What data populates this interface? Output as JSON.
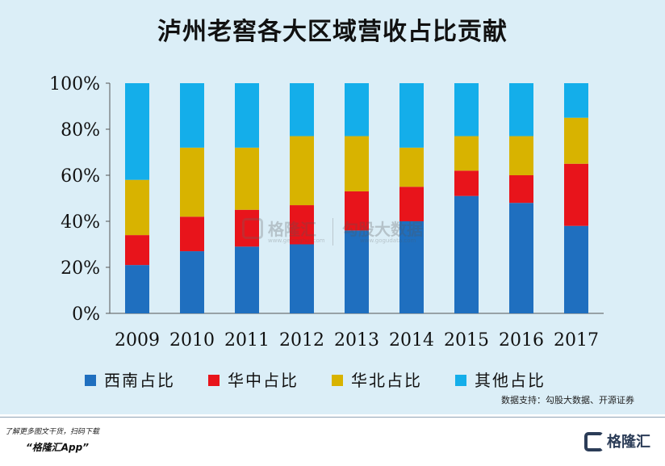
{
  "title": "泸州老窖各大区域营收占比贡献",
  "source": "数据支持：勾股大数据、开源证券",
  "watermark": {
    "brand1": "格隆汇",
    "brand1_url": "www.gelonghui.com",
    "brand2": "勾股大数据",
    "brand2_url": "www.gogudata.com"
  },
  "footer": {
    "note": "了解更多图文干货，扫码下载",
    "app": "“格隆汇App”",
    "brand": "格隆汇"
  },
  "colors": {
    "background": "#dbeef7",
    "series": [
      "#1f6fbf",
      "#e8141b",
      "#d8b300",
      "#14aeea"
    ]
  },
  "chart_data": {
    "type": "bar",
    "stacked": true,
    "title": "泸州老窖各大区域营收占比贡献",
    "categories": [
      "2009",
      "2010",
      "2011",
      "2012",
      "2013",
      "2014",
      "2015",
      "2016",
      "2017"
    ],
    "ylim": [
      0,
      100
    ],
    "yticks": [
      "0%",
      "20%",
      "40%",
      "60%",
      "80%",
      "100%"
    ],
    "legend_position": "bottom",
    "series": [
      {
        "name": "西南占比",
        "values": [
          21,
          27,
          29,
          30,
          36,
          40,
          51,
          48,
          38
        ]
      },
      {
        "name": "华中占比",
        "values": [
          13,
          15,
          16,
          17,
          17,
          15,
          11,
          12,
          27
        ]
      },
      {
        "name": "华北占比",
        "values": [
          24,
          30,
          27,
          30,
          24,
          17,
          15,
          17,
          20
        ]
      },
      {
        "name": "其他占比",
        "values": [
          42,
          28,
          28,
          23,
          23,
          28,
          23,
          23,
          15
        ]
      }
    ]
  }
}
